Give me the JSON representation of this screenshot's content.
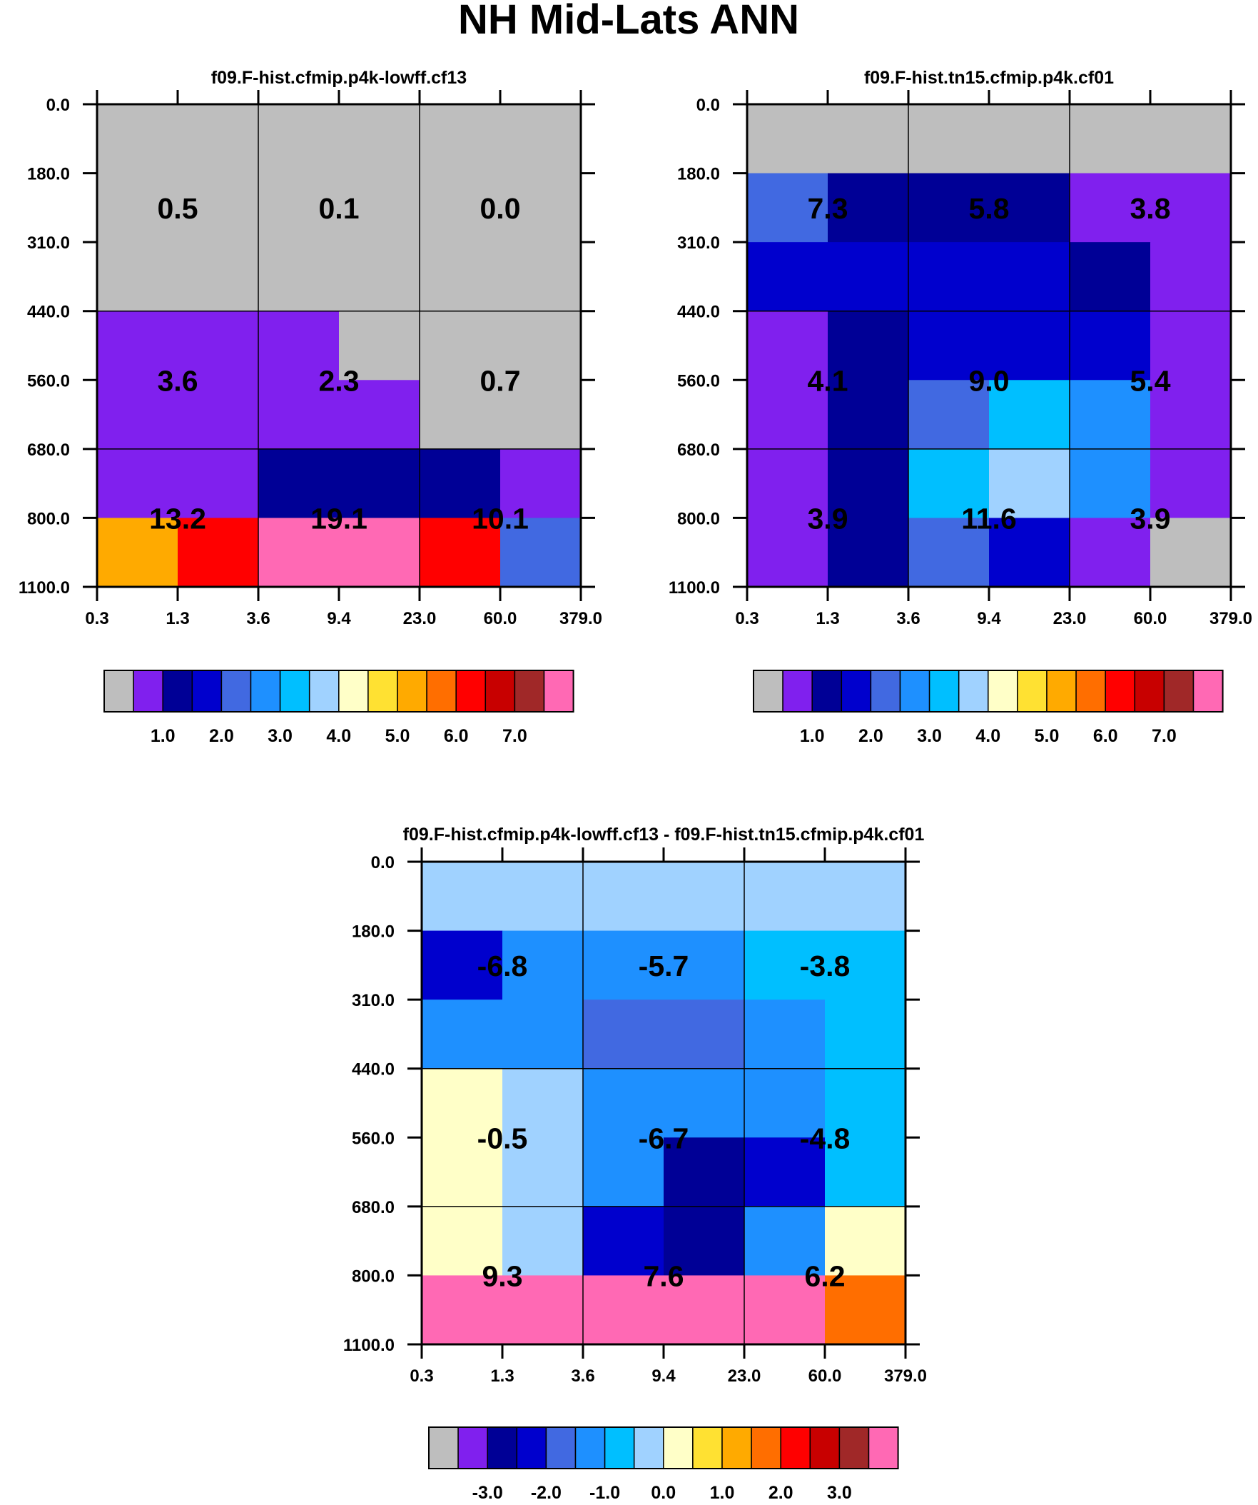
{
  "main_title": "NH Mid-Lats ANN",
  "color_scales": {
    "absolute": {
      "colors": [
        "#bebebe",
        "#8020ee",
        "#000096",
        "#0000cd",
        "#4169e1",
        "#1e90ff",
        "#00bfff",
        "#a0d2ff",
        "#ffffc8",
        "#ffe132",
        "#ffaa00",
        "#ff6e00",
        "#ff0000",
        "#c80000",
        "#a02828",
        "#ff69b4"
      ],
      "labels": [
        "1.0",
        "2.0",
        "3.0",
        "4.0",
        "5.0",
        "6.0",
        "7.0"
      ]
    },
    "difference": {
      "colors": [
        "#bebebe",
        "#8020ee",
        "#000096",
        "#0000cd",
        "#4169e1",
        "#1e90ff",
        "#00bfff",
        "#a0d2ff",
        "#ffffc8",
        "#ffe132",
        "#ffaa00",
        "#ff6e00",
        "#ff0000",
        "#c80000",
        "#a02828",
        "#ff69b4"
      ],
      "labels": [
        "-3.0",
        "-2.0",
        "-1.0",
        "0.0",
        "1.0",
        "2.0",
        "3.0"
      ]
    }
  },
  "chart_data": [
    {
      "type": "heatmap",
      "title": "f09.F-hist.cfmip.p4k-lowff.cf13",
      "x_ticks": [
        "0.3",
        "1.3",
        "3.6",
        "9.4",
        "23.0",
        "60.0",
        "379.0"
      ],
      "y_ticks": [
        "0.0",
        "180.0",
        "310.0",
        "440.0",
        "560.0",
        "680.0",
        "800.0",
        "1100.0"
      ],
      "scale": "absolute",
      "cell_bins": [
        [
          0,
          0,
          0,
          0,
          0,
          0
        ],
        [
          0,
          0,
          0,
          0,
          0,
          0
        ],
        [
          0,
          0,
          0,
          0,
          0,
          0
        ],
        [
          1,
          1,
          1,
          0,
          0,
          0
        ],
        [
          1,
          1,
          1,
          1,
          0,
          0
        ],
        [
          1,
          1,
          2,
          2,
          2,
          1
        ],
        [
          10,
          12,
          15,
          15,
          12,
          4
        ]
      ],
      "box_labels": [
        [
          "0.5",
          "0.1",
          "0.0"
        ],
        [
          "3.6",
          "2.3",
          "0.7"
        ],
        [
          "13.2",
          "19.1",
          "10.1"
        ]
      ]
    },
    {
      "type": "heatmap",
      "title": "f09.F-hist.tn15.cfmip.p4k.cf01",
      "x_ticks": [
        "0.3",
        "1.3",
        "3.6",
        "9.4",
        "23.0",
        "60.0",
        "379.0"
      ],
      "y_ticks": [
        "0.0",
        "180.0",
        "310.0",
        "440.0",
        "560.0",
        "680.0",
        "800.0",
        "1100.0"
      ],
      "scale": "absolute",
      "cell_bins": [
        [
          0,
          0,
          0,
          0,
          0,
          0
        ],
        [
          4,
          2,
          2,
          2,
          1,
          1
        ],
        [
          3,
          3,
          3,
          3,
          2,
          1
        ],
        [
          1,
          2,
          3,
          3,
          3,
          1
        ],
        [
          1,
          2,
          4,
          6,
          5,
          1
        ],
        [
          1,
          2,
          6,
          7,
          5,
          1
        ],
        [
          1,
          2,
          4,
          3,
          1,
          0
        ]
      ],
      "box_labels": [
        [
          "7.3",
          "5.8",
          "3.8"
        ],
        [
          "4.1",
          "9.0",
          "5.4"
        ],
        [
          "3.9",
          "11.6",
          "3.9"
        ]
      ]
    },
    {
      "type": "heatmap",
      "title": "f09.F-hist.cfmip.p4k-lowff.cf13 - f09.F-hist.tn15.cfmip.p4k.cf01",
      "x_ticks": [
        "0.3",
        "1.3",
        "3.6",
        "9.4",
        "23.0",
        "60.0",
        "379.0"
      ],
      "y_ticks": [
        "0.0",
        "180.0",
        "310.0",
        "440.0",
        "560.0",
        "680.0",
        "800.0",
        "1100.0"
      ],
      "scale": "difference",
      "cell_bins": [
        [
          7,
          7,
          7,
          7,
          7,
          7
        ],
        [
          3,
          5,
          5,
          5,
          6,
          6
        ],
        [
          5,
          5,
          4,
          4,
          5,
          6
        ],
        [
          8,
          7,
          5,
          5,
          5,
          6
        ],
        [
          8,
          7,
          5,
          2,
          3,
          6
        ],
        [
          8,
          7,
          3,
          2,
          5,
          8
        ],
        [
          15,
          15,
          15,
          15,
          15,
          11
        ]
      ],
      "box_labels": [
        [
          "-6.8",
          "-5.7",
          "-3.8"
        ],
        [
          "-0.5",
          "-6.7",
          "-4.8"
        ],
        [
          "9.3",
          "7.6",
          "6.2"
        ]
      ]
    }
  ]
}
